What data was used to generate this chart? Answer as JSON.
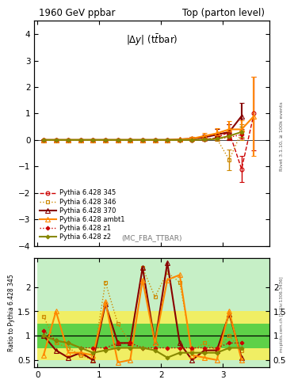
{
  "title_left": "1960 GeV ppbar",
  "title_right": "Top (parton level)",
  "obs_label": "|Δy| (ttbar)",
  "right_label_main": "Rivet 3.1.10, ≥ 100k events",
  "right_label_ratio": "mcplots.cern.ch [arXiv:1306.3436]",
  "annotation": "(MC_FBA_TTBAR)",
  "ylabel_ratio": "Ratio to Pythia 6.428 345",
  "ylim_main": [
    -4,
    4.5
  ],
  "ylim_ratio": [
    0.35,
    2.6
  ],
  "xlim": [
    -0.05,
    3.75
  ],
  "yticks_main": [
    -4,
    -3,
    -2,
    -1,
    0,
    1,
    2,
    3,
    4
  ],
  "yticks_ratio": [
    0.5,
    1.0,
    1.5,
    2.0
  ],
  "xticks": [
    0,
    1,
    2,
    3
  ],
  "series_main": [
    {
      "label": "Pythia 6.428 345",
      "color": "#cc0000",
      "marker": "o",
      "linestyle": "--",
      "linewidth": 1.0,
      "markersize": 3.5,
      "mfc": "none",
      "x": [
        0.1,
        0.3,
        0.5,
        0.7,
        0.9,
        1.1,
        1.3,
        1.5,
        1.7,
        1.9,
        2.1,
        2.3,
        2.5,
        2.7,
        2.9,
        3.1,
        3.3,
        3.5
      ],
      "y": [
        0.0,
        0.0,
        0.0,
        0.0,
        0.0,
        0.0,
        0.0,
        0.0,
        0.0,
        0.0,
        0.0,
        0.0,
        0.0,
        0.02,
        0.08,
        0.3,
        -1.1,
        1.0
      ],
      "yerr": [
        0.01,
        0.01,
        0.01,
        0.01,
        0.01,
        0.01,
        0.01,
        0.01,
        0.01,
        0.01,
        0.01,
        0.01,
        0.01,
        0.05,
        0.1,
        0.3,
        0.5,
        1.4
      ]
    },
    {
      "label": "Pythia 6.428 346",
      "color": "#cc8800",
      "marker": "s",
      "linestyle": ":",
      "linewidth": 1.0,
      "markersize": 3.5,
      "mfc": "none",
      "x": [
        0.1,
        0.3,
        0.5,
        0.7,
        0.9,
        1.1,
        1.3,
        1.5,
        1.7,
        1.9,
        2.1,
        2.3,
        2.5,
        2.7,
        2.9,
        3.1,
        3.3
      ],
      "y": [
        0.0,
        0.0,
        0.0,
        0.0,
        0.0,
        0.0,
        0.0,
        0.0,
        0.0,
        0.0,
        0.0,
        0.0,
        0.0,
        0.02,
        0.05,
        -0.75,
        0.3
      ],
      "yerr": [
        0.01,
        0.01,
        0.01,
        0.01,
        0.01,
        0.01,
        0.01,
        0.01,
        0.01,
        0.01,
        0.01,
        0.01,
        0.01,
        0.04,
        0.08,
        0.4,
        0.3
      ]
    },
    {
      "label": "Pythia 6.428 370",
      "color": "#880000",
      "marker": "^",
      "linestyle": "-",
      "linewidth": 1.5,
      "markersize": 4.5,
      "mfc": "none",
      "x": [
        0.1,
        0.3,
        0.5,
        0.7,
        0.9,
        1.1,
        1.3,
        1.5,
        1.7,
        1.9,
        2.1,
        2.3,
        2.5,
        2.7,
        2.9,
        3.1,
        3.3
      ],
      "y": [
        0.0,
        0.0,
        0.0,
        0.0,
        0.0,
        0.0,
        0.0,
        0.0,
        0.0,
        0.0,
        0.0,
        0.02,
        0.05,
        0.1,
        0.2,
        0.3,
        0.9
      ],
      "yerr": [
        0.01,
        0.01,
        0.01,
        0.01,
        0.01,
        0.01,
        0.01,
        0.01,
        0.01,
        0.01,
        0.01,
        0.03,
        0.06,
        0.1,
        0.2,
        0.3,
        0.5
      ]
    },
    {
      "label": "Pythia 6.428 ambt1",
      "color": "#ff8800",
      "marker": "^",
      "linestyle": "-",
      "linewidth": 1.5,
      "markersize": 4.5,
      "mfc": "none",
      "x": [
        0.1,
        0.3,
        0.5,
        0.7,
        0.9,
        1.1,
        1.3,
        1.5,
        1.7,
        1.9,
        2.1,
        2.3,
        2.5,
        2.7,
        2.9,
        3.1,
        3.3,
        3.5
      ],
      "y": [
        0.0,
        0.0,
        0.0,
        0.0,
        0.0,
        0.0,
        0.0,
        0.0,
        0.0,
        0.0,
        0.0,
        0.02,
        0.05,
        0.15,
        0.25,
        0.4,
        0.4,
        0.9
      ],
      "yerr": [
        0.01,
        0.01,
        0.01,
        0.01,
        0.01,
        0.01,
        0.01,
        0.01,
        0.01,
        0.01,
        0.01,
        0.03,
        0.06,
        0.1,
        0.2,
        0.3,
        0.35,
        1.5
      ]
    },
    {
      "label": "Pythia 6.428 z1",
      "color": "#cc0000",
      "marker": "D",
      "linestyle": ":",
      "linewidth": 1.0,
      "markersize": 2.5,
      "mfc": "#cc0000",
      "x": [
        0.1,
        0.3,
        0.5,
        0.7,
        0.9,
        1.1,
        1.3,
        1.5,
        1.7,
        1.9,
        2.1,
        2.3,
        2.5,
        2.7,
        2.9,
        3.1,
        3.3
      ],
      "y": [
        0.0,
        0.0,
        0.0,
        0.0,
        0.0,
        0.0,
        0.0,
        0.0,
        0.0,
        0.0,
        0.0,
        0.0,
        0.0,
        0.01,
        0.04,
        0.1,
        0.2
      ],
      "yerr": [
        0.005,
        0.005,
        0.005,
        0.005,
        0.005,
        0.005,
        0.005,
        0.005,
        0.005,
        0.005,
        0.005,
        0.005,
        0.005,
        0.02,
        0.05,
        0.08,
        0.15
      ]
    },
    {
      "label": "Pythia 6.428 z2",
      "color": "#888800",
      "marker": "D",
      "linestyle": "-",
      "linewidth": 1.5,
      "markersize": 2.5,
      "mfc": "#888800",
      "x": [
        0.1,
        0.3,
        0.5,
        0.7,
        0.9,
        1.1,
        1.3,
        1.5,
        1.7,
        1.9,
        2.1,
        2.3,
        2.5,
        2.7,
        2.9,
        3.1,
        3.3
      ],
      "y": [
        0.0,
        0.0,
        0.0,
        0.0,
        0.0,
        0.0,
        0.0,
        0.0,
        0.0,
        0.0,
        0.0,
        0.0,
        0.0,
        0.01,
        0.04,
        0.15,
        0.3
      ],
      "yerr": [
        0.005,
        0.005,
        0.005,
        0.005,
        0.005,
        0.005,
        0.005,
        0.005,
        0.005,
        0.005,
        0.005,
        0.005,
        0.005,
        0.02,
        0.05,
        0.1,
        0.2
      ]
    }
  ],
  "ratio_series": [
    {
      "label": "Pythia 6.428 346",
      "color": "#cc8800",
      "marker": "s",
      "linestyle": ":",
      "linewidth": 1.0,
      "markersize": 3.5,
      "mfc": "none",
      "x": [
        0.1,
        0.3,
        0.5,
        0.7,
        0.9,
        1.1,
        1.3,
        1.5,
        1.7,
        1.9,
        2.1,
        2.3,
        2.5,
        2.7,
        2.9,
        3.1,
        3.3
      ],
      "y": [
        1.4,
        0.85,
        0.75,
        0.6,
        0.5,
        2.1,
        1.25,
        0.85,
        2.4,
        1.8,
        2.3,
        2.1,
        0.7,
        0.85,
        0.7,
        1.0,
        0.7
      ]
    },
    {
      "label": "Pythia 6.428 370",
      "color": "#880000",
      "marker": "^",
      "linestyle": "-",
      "linewidth": 1.5,
      "markersize": 4.5,
      "mfc": "none",
      "x": [
        0.1,
        0.3,
        0.5,
        0.7,
        0.9,
        1.1,
        1.3,
        1.5,
        1.7,
        1.9,
        2.1,
        2.3,
        2.5,
        2.7,
        2.9,
        3.1,
        3.3
      ],
      "y": [
        1.0,
        0.7,
        0.55,
        0.65,
        0.5,
        1.65,
        0.85,
        0.85,
        2.4,
        0.85,
        2.5,
        0.85,
        0.5,
        0.7,
        0.7,
        1.45,
        0.55
      ]
    },
    {
      "label": "Pythia 6.428 ambt1",
      "color": "#ff8800",
      "marker": "^",
      "linestyle": "-",
      "linewidth": 1.5,
      "markersize": 4.5,
      "mfc": "none",
      "x": [
        0.1,
        0.3,
        0.5,
        0.7,
        0.9,
        1.1,
        1.3,
        1.5,
        1.7,
        1.9,
        2.1,
        2.3,
        2.5,
        2.7,
        2.9,
        3.1,
        3.3
      ],
      "y": [
        0.6,
        1.5,
        0.65,
        0.65,
        0.6,
        1.7,
        0.45,
        0.5,
        2.15,
        0.85,
        2.15,
        2.25,
        0.6,
        0.55,
        0.5,
        1.5,
        0.5
      ]
    },
    {
      "label": "Pythia 6.428 z1",
      "color": "#cc0000",
      "marker": "D",
      "linestyle": ":",
      "linewidth": 1.0,
      "markersize": 2.5,
      "mfc": "#cc0000",
      "x": [
        0.1,
        0.3,
        0.5,
        0.7,
        0.9,
        1.1,
        1.3,
        1.5,
        1.7,
        1.9,
        2.1,
        2.3,
        2.5,
        2.7,
        2.9,
        3.1,
        3.3
      ],
      "y": [
        1.1,
        0.9,
        0.85,
        0.75,
        0.75,
        0.75,
        0.85,
        0.85,
        0.75,
        0.75,
        0.75,
        0.75,
        0.75,
        0.75,
        0.75,
        0.85,
        0.85
      ]
    },
    {
      "label": "Pythia 6.428 z2",
      "color": "#888800",
      "marker": "D",
      "linestyle": "-",
      "linewidth": 1.5,
      "markersize": 2.5,
      "mfc": "#888800",
      "x": [
        0.1,
        0.3,
        0.5,
        0.7,
        0.9,
        1.1,
        1.3,
        1.5,
        1.7,
        1.9,
        2.1,
        2.3,
        2.5,
        2.7,
        2.9,
        3.1,
        3.3
      ],
      "y": [
        1.0,
        0.9,
        0.85,
        0.75,
        0.65,
        0.7,
        0.75,
        0.75,
        0.75,
        0.7,
        0.55,
        0.65,
        0.65,
        0.65,
        0.65,
        0.75,
        0.75
      ]
    }
  ],
  "band_green": "#44cc44",
  "band_yellow": "#ffee44",
  "bg_color": "#ffffff"
}
